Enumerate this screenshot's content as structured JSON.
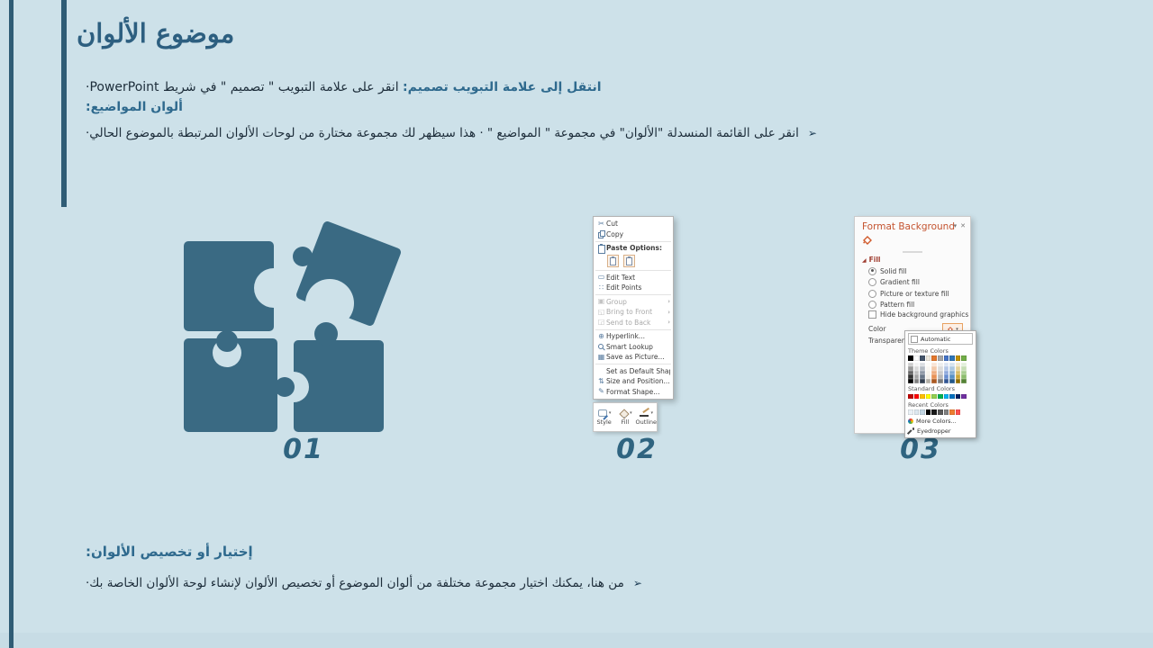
{
  "colors": {
    "background": "#CDE1E9",
    "bottom_band": "#C7DCE5",
    "side_bar": "#2F5C75",
    "title": "#2D5F80",
    "accent": "#2F6A8E",
    "body_text": "#1D2D3A",
    "puzzle": "#3A6A83",
    "number": "#2F6480",
    "panel_title": "#C4532F",
    "fill_header": "#9E3B2E",
    "menu_icon": "#5A7DA0"
  },
  "slide": {
    "title": "موضوع الألوان",
    "intro": {
      "lead": "انتقل إلى علامة التبويب تصميم:",
      "rest": " انقر على علامة التبويب \" تصميم \"  في شريط PowerPoint·",
      "subheading": "ألوان المواضيع:"
    },
    "bullet1": {
      "marker": "➢",
      "text": "انقر على القائمة المنسدلة \"الألوان\" في مجموعة \" المواضيع \" ·  هذا سيظهر لك مجموعة مختارة من لوحات الألوان المرتبطة بالموضوع الحالي·"
    },
    "section2": {
      "heading": "إختيار أو تخصيص الألوان:",
      "marker": "➢",
      "text": "من هنا، يمكنك اختيار مجموعة مختلفة من ألوان الموضوع أو تخصيص الألوان لإنشاء لوحة الألوان الخاصة بك·"
    },
    "step_numbers": [
      "01",
      "02",
      "03"
    ]
  },
  "context_menu": {
    "items": [
      {
        "icon": "cut",
        "label": "Cut"
      },
      {
        "icon": "copy",
        "label": "Copy"
      },
      {
        "type": "sep"
      },
      {
        "icon": "paste",
        "label": "Paste Options:",
        "bold": true
      },
      {
        "type": "paste-row"
      },
      {
        "type": "sep"
      },
      {
        "icon": "edit-text",
        "label": "Edit Text"
      },
      {
        "icon": "edit-points",
        "label": "Edit Points"
      },
      {
        "type": "sep"
      },
      {
        "icon": "group",
        "label": "Group",
        "disabled": true,
        "sub": true
      },
      {
        "icon": "front",
        "label": "Bring to Front",
        "disabled": true,
        "sub": true
      },
      {
        "icon": "back",
        "label": "Send to Back",
        "disabled": true,
        "sub": true
      },
      {
        "type": "sep"
      },
      {
        "icon": "hyperlink",
        "label": "Hyperlink..."
      },
      {
        "icon": "lookup",
        "label": "Smart Lookup"
      },
      {
        "icon": "savepic",
        "label": "Save as Picture..."
      },
      {
        "type": "sep"
      },
      {
        "icon": "none",
        "label": "Set as Default Shape"
      },
      {
        "icon": "sizepos",
        "label": "Size and Position..."
      },
      {
        "icon": "formatshape",
        "label": "Format Shape..."
      }
    ],
    "mini_toolbar": [
      {
        "label": "Style"
      },
      {
        "label": "Fill"
      },
      {
        "label": "Outline"
      }
    ]
  },
  "format_background": {
    "title": "Format Background",
    "window_icons": {
      "collapse": "▾",
      "close": "✕"
    },
    "fill": {
      "expander": "◢",
      "header": "Fill",
      "options": [
        {
          "label": "Solid fill",
          "selected": true
        },
        {
          "label": "Gradient fill",
          "selected": false
        },
        {
          "label": "Picture or texture fill",
          "selected": false
        },
        {
          "label": "Pattern fill",
          "selected": false
        }
      ],
      "checkbox": "Hide background graphics",
      "color_label": "Color",
      "transparency_label": "Transparen"
    },
    "color_dropdown": {
      "automatic": "Automatic",
      "theme_label": "Theme Colors",
      "standard_label": "Standard Colors",
      "recent_label": "Recent Colors",
      "more_colors": "More Colors...",
      "eyedropper": "Eyedropper",
      "theme_colors": [
        "#000000",
        "#FFFFFF",
        "#44546A",
        "#EEE9DE",
        "#E2772D",
        "#A6A6A6",
        "#4472C4",
        "#2E75B6",
        "#BF9000",
        "#70AD47"
      ],
      "standard_colors": [
        "#C00000",
        "#FF0000",
        "#FFC000",
        "#FFFF00",
        "#92D050",
        "#00B050",
        "#00B0F0",
        "#0070C0",
        "#002060",
        "#7030A0"
      ],
      "recent_colors": [
        "#EAF1F6",
        "#DDE8F0",
        "#C3D6E2",
        "#000000",
        "#1A1A1A",
        "#595959",
        "#808080",
        "#ED7D31",
        "#FF5050"
      ]
    }
  }
}
